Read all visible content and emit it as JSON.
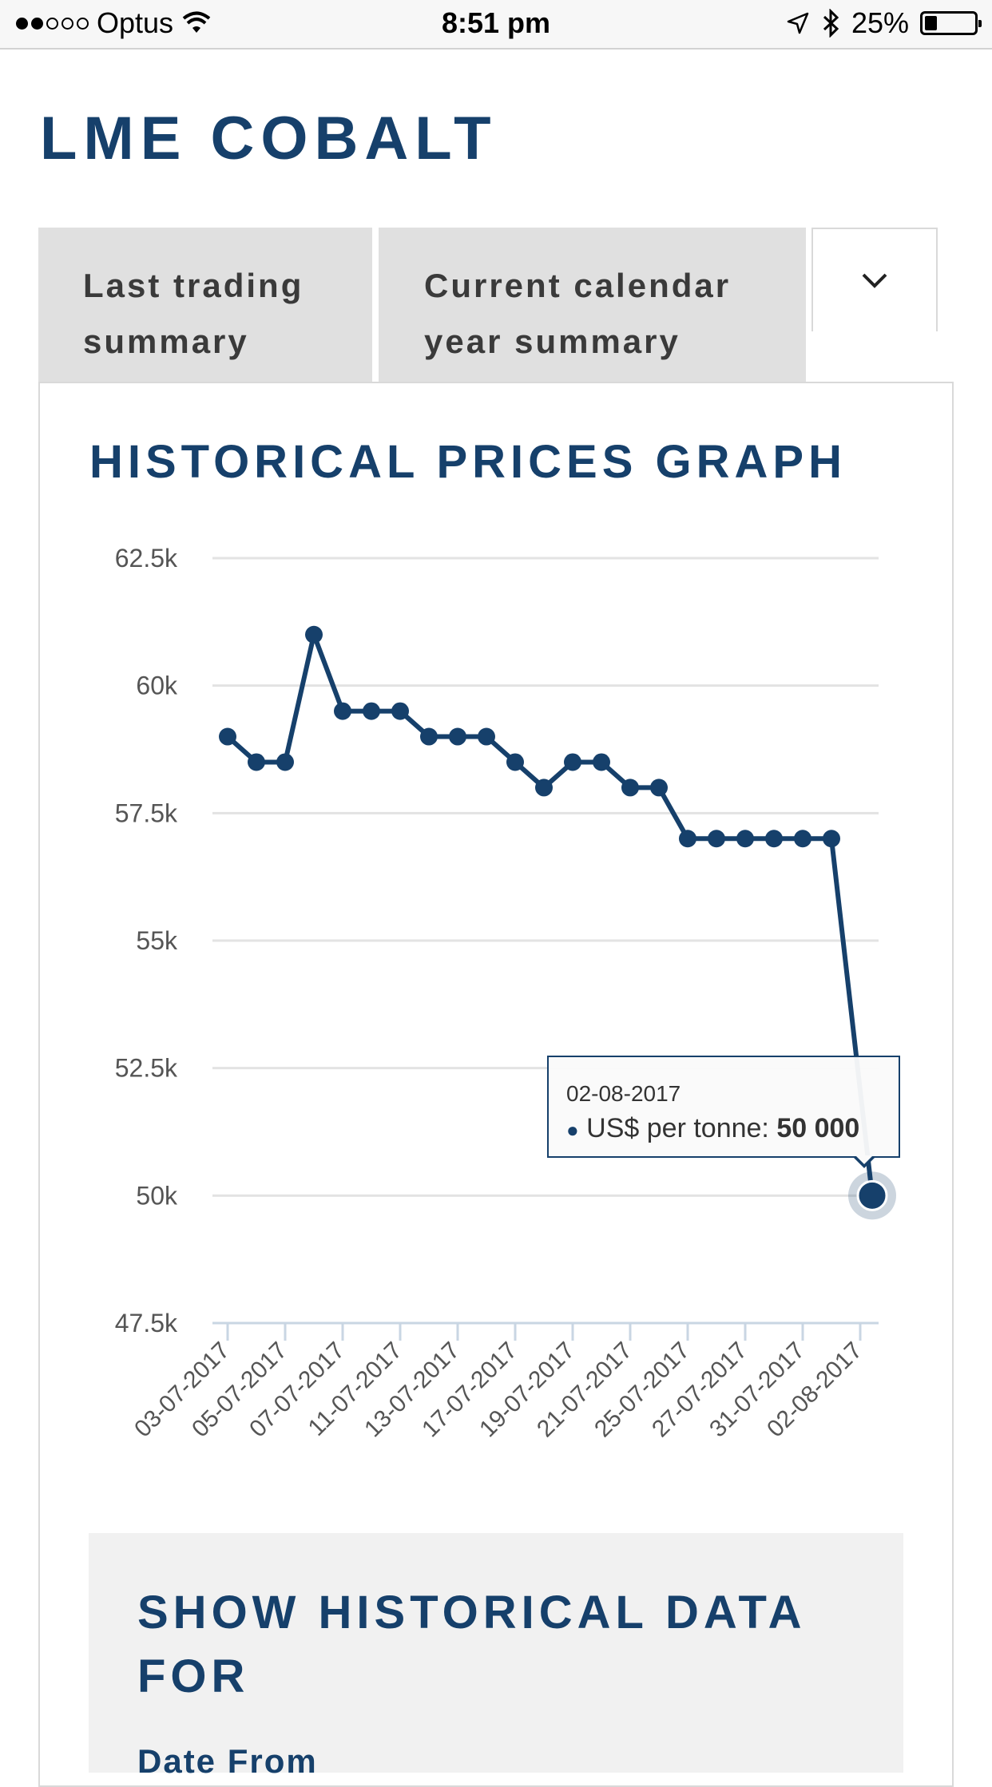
{
  "status_bar": {
    "carrier": "Optus",
    "time": "8:51 pm",
    "battery": "25%",
    "battery_level": 0.25
  },
  "page": {
    "title": "LME COBALT"
  },
  "tabs": [
    {
      "label_line1": "Last trading",
      "label_line2": "summary"
    },
    {
      "label_line1": "Current calendar",
      "label_line2": "year summary"
    }
  ],
  "graph": {
    "title": "HISTORICAL PRICES GRAPH"
  },
  "chart_data": {
    "type": "line",
    "series": [
      {
        "name": "US$ per tonne",
        "values": [
          59000,
          58500,
          58500,
          61000,
          59500,
          59500,
          59500,
          59000,
          59000,
          59000,
          58500,
          58000,
          58500,
          58500,
          58000,
          58000,
          57000,
          57000,
          57000,
          57000,
          57000,
          57000,
          50000
        ]
      }
    ],
    "x_tick_labels": [
      "03-07-2017",
      "05-07-2017",
      "07-07-2017",
      "11-07-2017",
      "13-07-2017",
      "17-07-2017",
      "19-07-2017",
      "21-07-2017",
      "25-07-2017",
      "27-07-2017",
      "31-07-2017",
      "02-08-2017"
    ],
    "y_ticks": [
      {
        "value": 47500,
        "label": "47.5k"
      },
      {
        "value": 50000,
        "label": "50k"
      },
      {
        "value": 52500,
        "label": "52.5k"
      },
      {
        "value": 55000,
        "label": "55k"
      },
      {
        "value": 57500,
        "label": "57.5k"
      },
      {
        "value": 60000,
        "label": "60k"
      },
      {
        "value": 62500,
        "label": "62.5k"
      }
    ],
    "ylim": [
      47500,
      62500
    ],
    "grid": true,
    "color": "#16406b",
    "tooltip": {
      "date": "02-08-2017",
      "series_label": "US$ per tonne:",
      "value": "50 000"
    }
  },
  "history_section": {
    "title_line1": "SHOW HISTORICAL DATA",
    "title_line2": "FOR",
    "date_from_label": "Date From"
  }
}
